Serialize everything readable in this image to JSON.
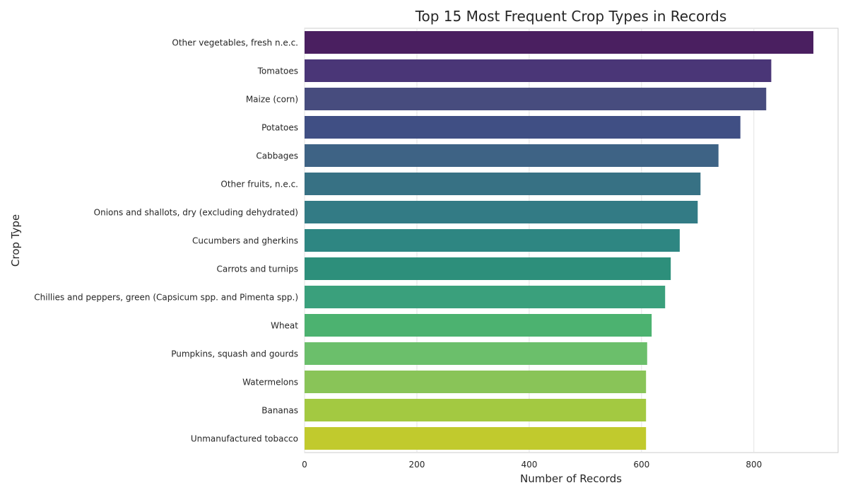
{
  "chart_data": {
    "type": "bar",
    "orientation": "horizontal",
    "title": "Top 15 Most Frequent Crop Types in Records",
    "xlabel": "Number of Records",
    "ylabel": "Crop Type",
    "xlim": [
      0,
      950
    ],
    "xticks": [
      0,
      200,
      400,
      600,
      800
    ],
    "grid": true,
    "categories": [
      "Other vegetables, fresh n.e.c.",
      "Tomatoes",
      "Maize (corn)",
      "Potatoes",
      "Cabbages",
      "Other fruits, n.e.c.",
      "Onions and shallots, dry (excluding dehydrated)",
      "Cucumbers and gherkins",
      "Carrots and turnips",
      "Chillies and peppers, green (Capsicum spp. and Pimenta spp.)",
      "Wheat",
      "Pumpkins, squash and gourds",
      "Watermelons",
      "Bananas",
      "Unmanufactured tobacco"
    ],
    "values": [
      906,
      831,
      822,
      776,
      737,
      705,
      700,
      668,
      652,
      642,
      618,
      610,
      608,
      608,
      608
    ],
    "colors": [
      "#4a1f60",
      "#4a3677",
      "#474c7e",
      "#404f84",
      "#3e6385",
      "#377184",
      "#337b85",
      "#2e8682",
      "#2d8f7b",
      "#3aa07c",
      "#4cb270",
      "#6bbf6b",
      "#89c458",
      "#a3c941",
      "#c1ca2d"
    ]
  }
}
